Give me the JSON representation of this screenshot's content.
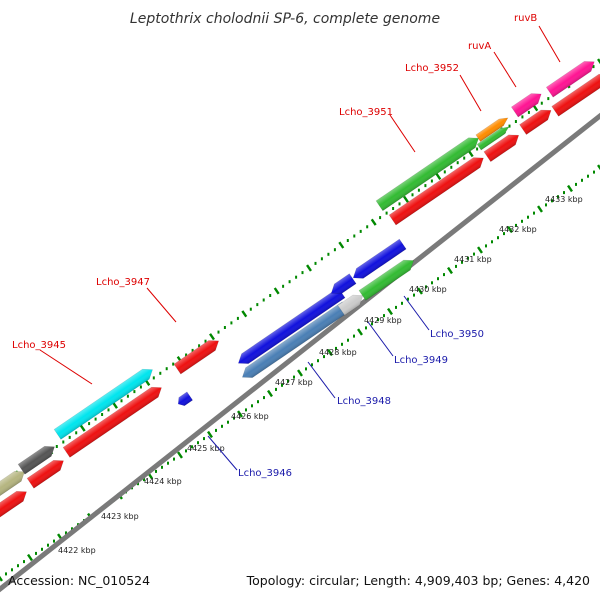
{
  "title": "Leptothrix cholodnii SP-6, complete genome",
  "footer": {
    "accession": "Accession: NC_010524",
    "summary": "Topology: circular; Length: 4,909,403 bp; Genes: 4,420"
  },
  "kbp_labels": [
    "4422 kbp",
    "4423 kbp",
    "4424 kbp",
    "4425 kbp",
    "4426 kbp",
    "4427 kbp",
    "4428 kbp",
    "4429 kbp",
    "4430 kbp",
    "4431 kbp",
    "4432 kbp",
    "4433 kbp"
  ],
  "gene_labels": {
    "red": [
      "Lcho_3945",
      "Lcho_3947",
      "Lcho_3951",
      "Lcho_3952",
      "ruvA",
      "ruvB"
    ],
    "blue": [
      "Lcho_3946",
      "Lcho_3948",
      "Lcho_3949",
      "Lcho_3950"
    ]
  },
  "colors": {
    "label_red": "#dd0000",
    "label_blue": "#1a1aaa",
    "axis": "#7a7a7a",
    "tick": "#008800",
    "cds": "#ee1111",
    "green": "#33bb33",
    "cyan": "#00e5ee",
    "blue": "#1111dd",
    "steelblue": "#4a7fb5",
    "lightgray": "#cccccc",
    "darkgray": "#555555",
    "olive": "#b5b580",
    "orange": "#ff8c00",
    "pink": "#ff1493"
  }
}
